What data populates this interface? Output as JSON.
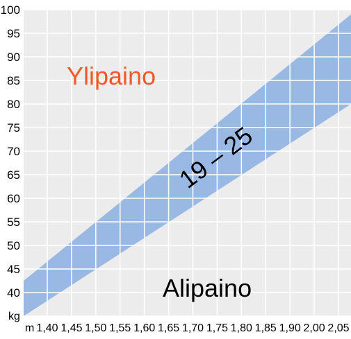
{
  "chart_data": {
    "type": "area",
    "title": "",
    "xlabel": "m",
    "ylabel": "kg",
    "x_ticks": [
      "1,40",
      "1,45",
      "1,50",
      "1,55",
      "1,60",
      "1,65",
      "1,70",
      "1,75",
      "1,80",
      "1,85",
      "1,90",
      "2,00",
      "2,05"
    ],
    "y_ticks": [
      "40",
      "45",
      "50",
      "55",
      "60",
      "65",
      "70",
      "75",
      "80",
      "85",
      "90",
      "95",
      "100"
    ],
    "ylim": [
      35,
      100
    ],
    "band": {
      "label": "19 – 25",
      "lower_bmi": 19,
      "upper_bmi": 25,
      "x": [
        1.37,
        2.07
      ],
      "lower_y": [
        35,
        80
      ],
      "upper_y": [
        42.5,
        99
      ]
    },
    "grid": true,
    "annotations": {
      "above": "Ylipaino",
      "below": "Alipaino"
    },
    "colors": {
      "background": "#ececec",
      "band": "#99b8e3",
      "grid": "#ffffff",
      "above_text": "#f05a28",
      "below_text": "#000000"
    }
  }
}
